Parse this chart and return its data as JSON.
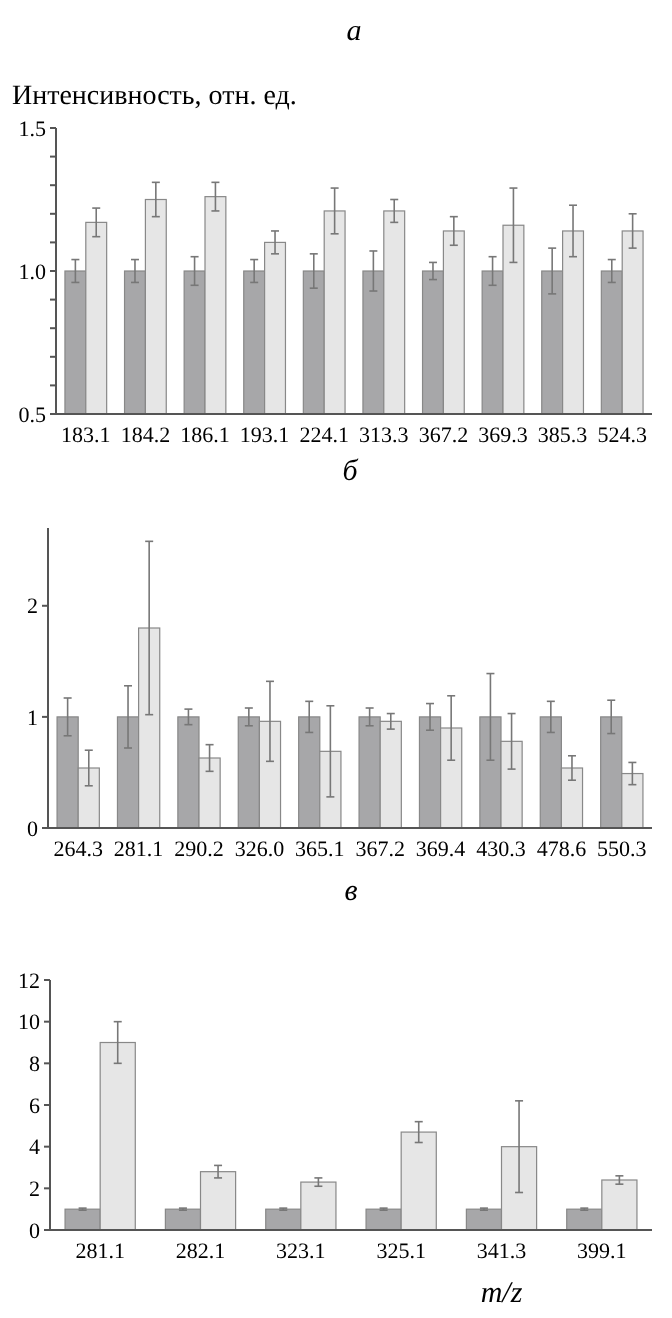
{
  "chart_data": [
    {
      "type": "bar",
      "title": "а",
      "ylabel": "Интенсивность, отн. ед.",
      "categories": [
        "183.1",
        "184.2",
        "186.1",
        "193.1",
        "224.1",
        "313.3",
        "367.2",
        "369.3",
        "385.3",
        "524.3"
      ],
      "series": [
        {
          "color": "#a7a7a9",
          "values": [
            1,
            1,
            1,
            1,
            1,
            1,
            1,
            1,
            1,
            1
          ],
          "errors": [
            0.04,
            0.04,
            0.05,
            0.04,
            0.06,
            0.07,
            0.03,
            0.05,
            0.08,
            0.04
          ]
        },
        {
          "color": "#e6e6e6",
          "values": [
            1.17,
            1.25,
            1.26,
            1.1,
            1.21,
            1.21,
            1.14,
            1.16,
            1.14,
            1.14
          ],
          "errors": [
            0.05,
            0.06,
            0.05,
            0.04,
            0.08,
            0.04,
            0.05,
            0.13,
            0.09,
            0.06
          ]
        }
      ],
      "ylim": [
        0.5,
        1.5
      ],
      "yticks": [
        0.5,
        {
          "value": 0.6,
          "label": null
        },
        {
          "value": 0.7,
          "label": null
        },
        {
          "value": 0.8,
          "label": null
        },
        {
          "value": 0.9,
          "label": null
        },
        {
          "value": 1.0,
          "label": "1.0"
        },
        {
          "value": 1.1,
          "label": null
        },
        {
          "value": 1.2,
          "label": null
        },
        {
          "value": 1.3,
          "label": null
        },
        {
          "value": 1.4,
          "label": null
        },
        1.5
      ],
      "grid": false
    },
    {
      "type": "bar",
      "title": "б",
      "categories": [
        "264.3",
        "281.1",
        "290.2",
        "326.0",
        "365.1",
        "367.2",
        "369.4",
        "430.3",
        "478.6",
        "550.3"
      ],
      "series": [
        {
          "color": "#a7a7a9",
          "values": [
            1,
            1,
            1,
            1,
            1,
            1,
            1,
            1,
            1,
            1
          ],
          "errors": [
            0.17,
            0.28,
            0.07,
            0.08,
            0.14,
            0.08,
            0.12,
            0.39,
            0.14,
            0.15
          ]
        },
        {
          "color": "#e6e6e6",
          "values": [
            0.54,
            1.8,
            0.63,
            0.96,
            0.69,
            0.96,
            0.9,
            0.78,
            0.54,
            0.49
          ],
          "errors": [
            0.16,
            0.78,
            0.12,
            0.36,
            0.41,
            0.07,
            0.29,
            0.25,
            0.11,
            0.1
          ]
        }
      ],
      "ylim": [
        0,
        2.7
      ],
      "yticks": [
        0,
        1,
        2
      ],
      "grid": false
    },
    {
      "type": "bar",
      "title": "в",
      "xlabel": "m/z",
      "categories": [
        "281.1",
        "282.1",
        "323.1",
        "325.1",
        "341.3",
        "399.1"
      ],
      "series": [
        {
          "color": "#a7a7a9",
          "values": [
            1,
            1,
            1,
            1,
            1,
            1
          ],
          "errors": [
            0.05,
            0.05,
            0.05,
            0.05,
            0.05,
            0.05
          ]
        },
        {
          "color": "#e6e6e6",
          "values": [
            9.0,
            2.8,
            2.3,
            4.7,
            4.0,
            2.4
          ],
          "errors": [
            1.0,
            0.3,
            0.2,
            0.5,
            2.2,
            0.2
          ]
        }
      ],
      "ylim": [
        0,
        12
      ],
      "yticks": [
        0,
        2,
        4,
        6,
        8,
        10,
        12
      ],
      "grid": false
    }
  ]
}
